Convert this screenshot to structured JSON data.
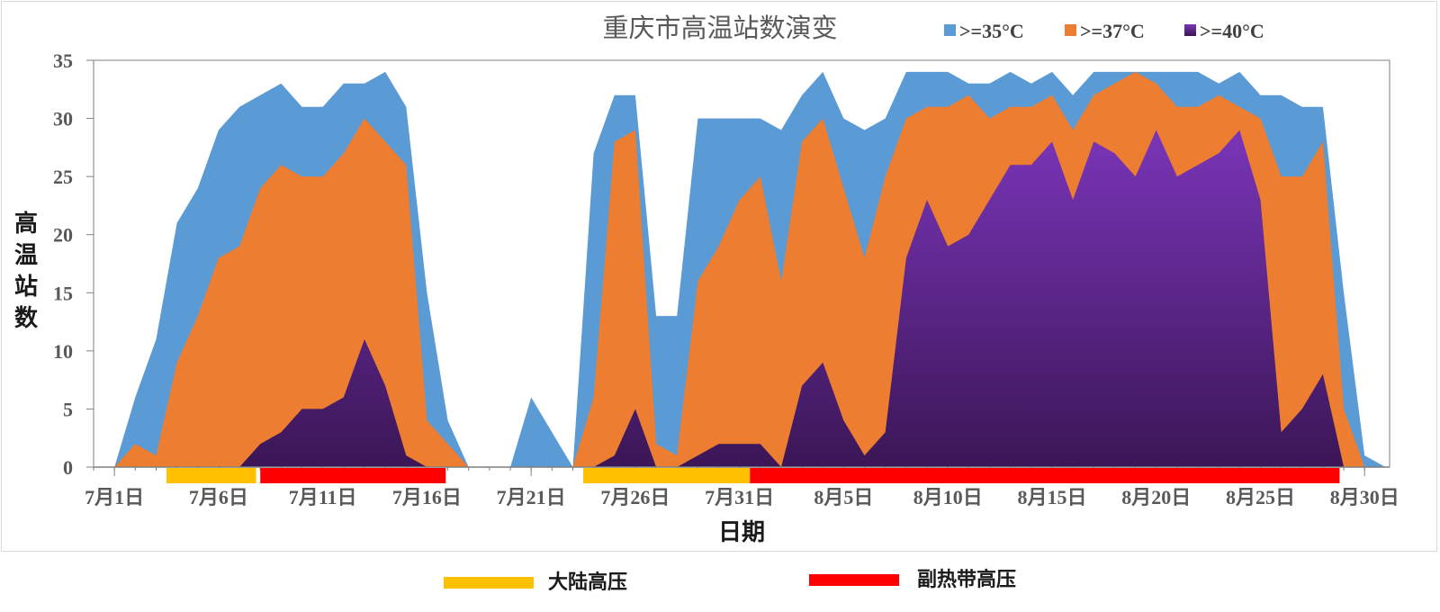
{
  "chart_data": {
    "type": "area",
    "title": "重庆市高温站数演变",
    "xlabel": "日期",
    "ylabel": "高温站数",
    "ylim": [
      0,
      35
    ],
    "yticks": [
      0,
      5,
      10,
      15,
      20,
      25,
      30,
      35
    ],
    "x_start_date": "07-01",
    "xticks": [
      {
        "label": "7月1日",
        "day": 1
      },
      {
        "label": "7月6日",
        "day": 6
      },
      {
        "label": "7月11日",
        "day": 11
      },
      {
        "label": "7月16日",
        "day": 16
      },
      {
        "label": "7月21日",
        "day": 21
      },
      {
        "label": "7月26日",
        "day": 26
      },
      {
        "label": "7月31日",
        "day": 31
      },
      {
        "label": "8月5日",
        "day": 36
      },
      {
        "label": "8月10日",
        "day": 41
      },
      {
        "label": "8月15日",
        "day": 46
      },
      {
        "label": "8月20日",
        "day": 51
      },
      {
        "label": "8月25日",
        "day": 56
      },
      {
        "label": "8月30日",
        "day": 61
      }
    ],
    "series": [
      {
        "name": ">=35°C",
        "color": "#5b9bd5",
        "values": [
          0,
          0,
          6,
          11,
          21,
          24,
          29,
          31,
          32,
          33,
          31,
          31,
          33,
          33,
          34,
          31,
          15,
          4,
          0,
          0,
          0,
          6,
          3,
          0,
          27,
          32,
          32,
          13,
          13,
          30,
          30,
          30,
          30,
          29,
          32,
          34,
          30,
          29,
          30,
          34,
          34,
          34,
          33,
          33,
          34,
          33,
          34,
          32,
          34,
          34,
          34,
          34,
          34,
          34,
          33,
          34,
          32,
          32,
          31,
          31,
          15,
          1,
          0
        ]
      },
      {
        "name": ">=37°C",
        "color": "#ed7d31",
        "values": [
          0,
          0,
          2,
          1,
          9,
          13,
          18,
          19,
          24,
          26,
          25,
          25,
          27,
          30,
          28,
          26,
          4,
          2,
          0,
          0,
          0,
          0,
          0,
          0,
          6,
          28,
          29,
          2,
          1,
          16,
          19,
          23,
          25,
          16,
          28,
          30,
          24,
          18,
          25,
          30,
          31,
          31,
          32,
          30,
          31,
          31,
          32,
          29,
          32,
          33,
          34,
          33,
          31,
          31,
          32,
          31,
          30,
          25,
          25,
          28,
          5,
          0,
          0
        ]
      },
      {
        "name": ">=40°C",
        "color": "#7030a0",
        "values": [
          0,
          0,
          0,
          0,
          0,
          0,
          0,
          0,
          2,
          3,
          5,
          5,
          6,
          11,
          7,
          1,
          0,
          0,
          0,
          0,
          0,
          0,
          0,
          0,
          0,
          1,
          5,
          0,
          0,
          1,
          2,
          2,
          2,
          0,
          7,
          9,
          4,
          1,
          3,
          18,
          23,
          19,
          20,
          23,
          26,
          26,
          28,
          23,
          28,
          27,
          25,
          29,
          25,
          26,
          27,
          29,
          23,
          3,
          5,
          8,
          0,
          0,
          0
        ]
      }
    ]
  },
  "period_bars": [
    {
      "type": "大陆高压",
      "color": "#ffc000",
      "start_day": 3.5,
      "end_day": 7.8
    },
    {
      "type": "副热带高压",
      "color": "#ff0000",
      "start_day": 8.0,
      "end_day": 16.9
    },
    {
      "type": "大陆高压",
      "color": "#ffc000",
      "start_day": 23.5,
      "end_day": 31.5
    },
    {
      "type": "副热带高压",
      "color": "#ff0000",
      "start_day": 31.5,
      "end_day": 59.8
    }
  ],
  "legend": {
    "items": [
      {
        "label": ">=35°C",
        "color": "#5b9bd5"
      },
      {
        "label": ">=37°C",
        "color": "#ed7d31"
      },
      {
        "label": ">=40°C",
        "color": "#7030a0"
      }
    ]
  },
  "bottom_legend": {
    "items": [
      {
        "label": "大陆高压",
        "color": "#ffc000"
      },
      {
        "label": "副热带高压",
        "color": "#ff0000"
      }
    ]
  }
}
